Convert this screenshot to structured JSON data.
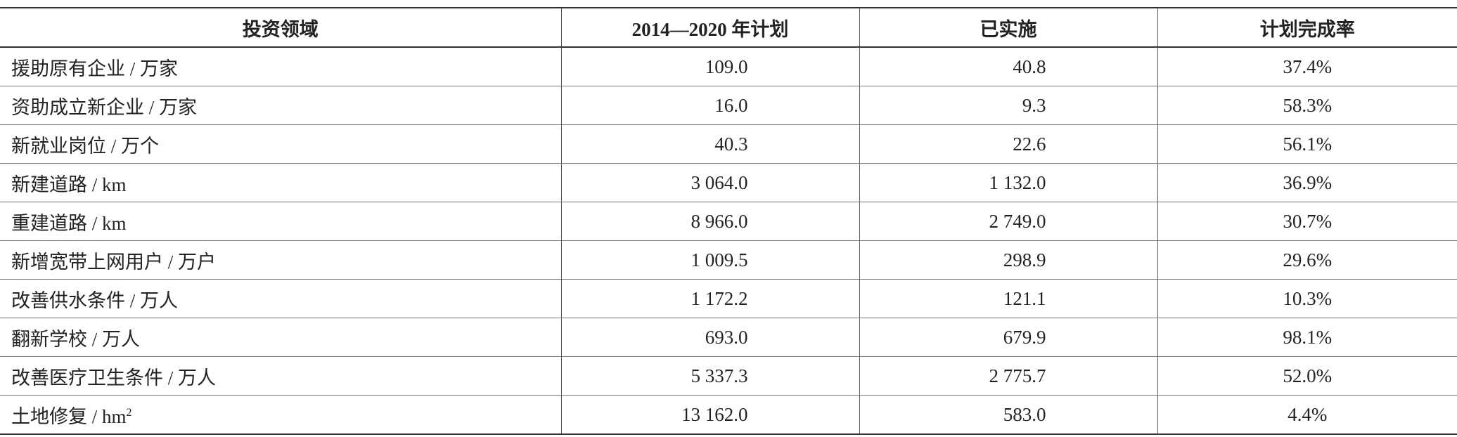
{
  "table": {
    "header": [
      "投资领域",
      "2014—2020 年计划",
      "已实施",
      "计划完成率"
    ],
    "rows": [
      [
        {
          "text": "援助原有企业 / 万家"
        },
        "109.0",
        "40.8",
        "37.4%"
      ],
      [
        {
          "text": "资助成立新企业 / 万家"
        },
        "16.0",
        "9.3",
        "58.3%"
      ],
      [
        {
          "text": "新就业岗位 / 万个"
        },
        "40.3",
        "22.6",
        "56.1%"
      ],
      [
        {
          "text": "新建道路 / km"
        },
        "3 064.0",
        "1 132.0",
        "36.9%"
      ],
      [
        {
          "text": "重建道路 / km"
        },
        "8 966.0",
        "2 749.0",
        "30.7%"
      ],
      [
        {
          "text": "新增宽带上网用户 / 万户"
        },
        "1 009.5",
        "298.9",
        "29.6%"
      ],
      [
        {
          "text": "改善供水条件 / 万人"
        },
        "1 172.2",
        "121.1",
        "10.3%"
      ],
      [
        {
          "text": "翻新学校 / 万人"
        },
        "693.0",
        "679.9",
        "98.1%"
      ],
      [
        {
          "text": "改善医疗卫生条件 / 万人"
        },
        "5 337.3",
        "2 775.7",
        "52.0%"
      ],
      [
        {
          "text": "土地修复 / hm",
          "sup": "2"
        },
        "13 162.0",
        "583.0",
        "4.4%"
      ]
    ]
  }
}
